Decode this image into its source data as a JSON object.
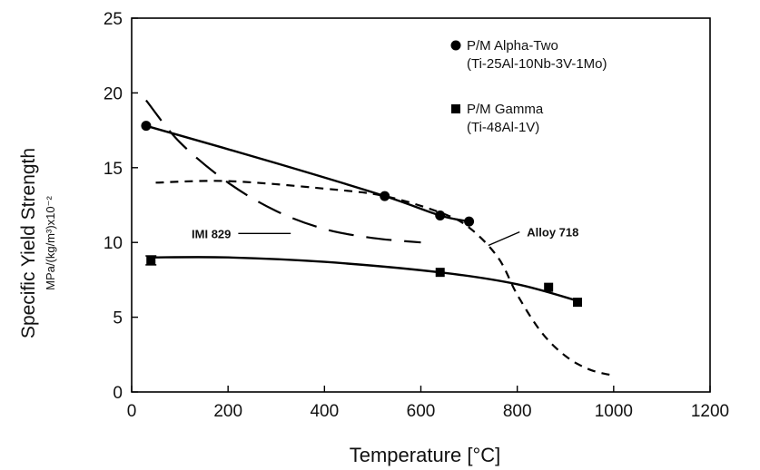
{
  "chart_data": {
    "type": "line",
    "xlabel": "Temperature [°C]",
    "ylabel": "Specific Yield Strength",
    "ylabel_units": "MPa/(kg/m³)x10⁻²",
    "xlim": [
      0,
      1200
    ],
    "ylim": [
      0,
      25
    ],
    "x_ticks": [
      0,
      200,
      400,
      600,
      800,
      1000,
      1200
    ],
    "y_ticks": [
      0,
      5,
      10,
      15,
      20,
      25
    ],
    "grid": false,
    "legend_position": "top-right",
    "series": [
      {
        "name": "P/M Alpha-Two",
        "composition": "(Ti-25Al-10Nb-3V-1Mo)",
        "marker": "circle",
        "line_style": "solid",
        "color": "#000000",
        "points": [
          [
            30,
            17.8
          ],
          [
            525,
            13.1
          ],
          [
            640,
            11.8
          ],
          [
            700,
            11.4
          ]
        ],
        "curve": [
          [
            30,
            17.8
          ],
          [
            300,
            15.3
          ],
          [
            525,
            13.1
          ],
          [
            640,
            11.8
          ],
          [
            700,
            11.4
          ]
        ]
      },
      {
        "name": "P/M Gamma",
        "composition": "(Ti-48Al-1V)",
        "marker": "square",
        "line_style": "solid",
        "color": "#000000",
        "points": [
          [
            40,
            8.8
          ],
          [
            640,
            8.0
          ],
          [
            865,
            7.0
          ],
          [
            925,
            6.0
          ]
        ],
        "error_bar": {
          "x": 40,
          "low": 8.5,
          "high": 9.1
        },
        "curve": [
          [
            40,
            9.0
          ],
          [
            200,
            9.0
          ],
          [
            400,
            8.7
          ],
          [
            640,
            8.0
          ],
          [
            800,
            7.2
          ],
          [
            925,
            6.1
          ]
        ]
      },
      {
        "name": "IMI 829",
        "marker": "none",
        "line_style": "long-dash",
        "color": "#000000",
        "curve": [
          [
            30,
            19.5
          ],
          [
            100,
            16.7
          ],
          [
            200,
            14.0
          ],
          [
            300,
            12.1
          ],
          [
            400,
            10.9
          ],
          [
            500,
            10.3
          ],
          [
            600,
            10.0
          ]
        ]
      },
      {
        "name": "Alloy 718",
        "marker": "none",
        "line_style": "short-dash",
        "color": "#000000",
        "curve": [
          [
            50,
            14.0
          ],
          [
            200,
            14.1
          ],
          [
            400,
            13.6
          ],
          [
            525,
            13.1
          ],
          [
            640,
            12.0
          ],
          [
            700,
            11.0
          ],
          [
            760,
            9.0
          ],
          [
            800,
            6.5
          ],
          [
            850,
            4.0
          ],
          [
            900,
            2.4
          ],
          [
            950,
            1.5
          ],
          [
            1000,
            1.1
          ]
        ]
      }
    ],
    "legend": [
      {
        "marker": "circle",
        "label": "P/M Alpha-Two",
        "sublabel": "(Ti-25Al-10Nb-3V-1Mo)"
      },
      {
        "marker": "square",
        "label": "P/M Gamma",
        "sublabel": "(Ti-48Al-1V)"
      }
    ],
    "annotations": [
      {
        "text": "IMI  829",
        "anchor": [
          240,
          10.6
        ],
        "leader_to": [
          330,
          10.6
        ]
      },
      {
        "text": "Alloy 718",
        "anchor": [
          820,
          10.7
        ],
        "leader_to": [
          740,
          9.8
        ]
      }
    ]
  }
}
